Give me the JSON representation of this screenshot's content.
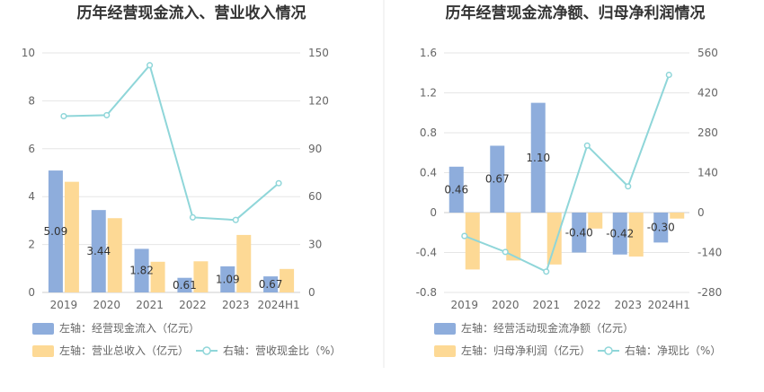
{
  "chart_data": [
    {
      "type": "bar",
      "title": "历年经营现金流入、营业收入情况",
      "categories": [
        "2019",
        "2020",
        "2021",
        "2022",
        "2023",
        "2024H1"
      ],
      "left_axis": {
        "ylim": [
          0,
          10
        ],
        "ticks": [
          "0",
          "2",
          "4",
          "6",
          "8",
          "10"
        ]
      },
      "right_axis": {
        "ylim": [
          0,
          150
        ],
        "ticks": [
          "0",
          "30",
          "60",
          "90",
          "120",
          "150"
        ]
      },
      "series": [
        {
          "name": "左轴：经营现金流入（亿元）",
          "type": "bar",
          "axis": "left",
          "color": "#8EADDC",
          "values": [
            5.09,
            3.44,
            1.82,
            0.61,
            1.09,
            0.67
          ],
          "labels": [
            "5.09",
            "3.44",
            "1.82",
            "0.61",
            "1.09",
            "0.67"
          ]
        },
        {
          "name": "左轴：营业总收入（亿元）",
          "type": "bar",
          "axis": "left",
          "color": "#FDD995",
          "values": [
            4.62,
            3.1,
            1.28,
            1.3,
            2.4,
            0.98
          ]
        },
        {
          "name": "右轴：营收现金比（%）",
          "type": "line",
          "axis": "right",
          "color": "#8FD6D9",
          "values": [
            110.4,
            111.0,
            142.3,
            47.0,
            45.4,
            68.4
          ]
        }
      ],
      "grid": true,
      "legend": "bottom"
    },
    {
      "type": "bar",
      "title": "历年经营现金流净额、归母净利润情况",
      "categories": [
        "2019",
        "2020",
        "2021",
        "2022",
        "2023",
        "2024H1"
      ],
      "left_axis": {
        "ylim": [
          -0.8,
          1.6
        ],
        "ticks": [
          "-0.8",
          "-0.4",
          "0",
          "0.4",
          "0.8",
          "1.2",
          "1.6"
        ]
      },
      "right_axis": {
        "ylim": [
          -280,
          560
        ],
        "ticks": [
          "-280",
          "-140",
          "0",
          "140",
          "280",
          "420",
          "560"
        ]
      },
      "series": [
        {
          "name": "左轴：经营活动现金流净额（亿元）",
          "type": "bar",
          "axis": "left",
          "color": "#8EADDC",
          "values": [
            0.46,
            0.67,
            1.1,
            -0.4,
            -0.42,
            -0.3
          ],
          "labels": [
            "0.46",
            "0.67",
            "1.10",
            "-0.40",
            "-0.42",
            "-0.30"
          ]
        },
        {
          "name": "左轴：归母净利润（亿元）",
          "type": "bar",
          "axis": "left",
          "color": "#FDD995",
          "values": [
            -0.57,
            -0.48,
            -0.52,
            -0.16,
            -0.44,
            -0.06
          ]
        },
        {
          "name": "右轴：净现比（%）",
          "type": "line",
          "axis": "right",
          "color": "#8FD6D9",
          "values": [
            -82,
            -138,
            -207,
            235,
            92,
            483
          ]
        }
      ],
      "grid": true,
      "legend": "bottom"
    }
  ]
}
